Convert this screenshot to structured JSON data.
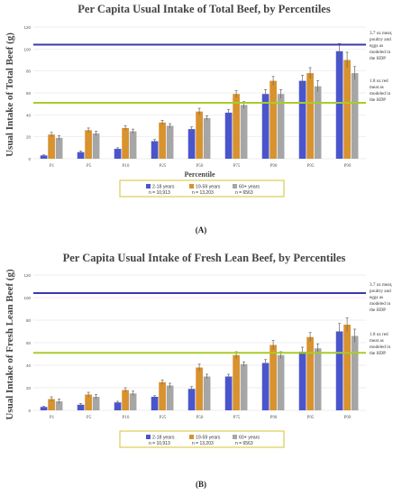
{
  "colors": {
    "series": [
      "#4a55cc",
      "#d8922e",
      "#a6a6a6"
    ],
    "line_top": "#3a3ab0",
    "line_mid": "#a8cc2a",
    "grid": "#e6e6e6"
  },
  "chart_data": [
    {
      "type": "bar",
      "panel_label": "(A)",
      "title": "Per Capita Usual Intake of Total Beef, by Percentiles",
      "xlabel": "Percentile",
      "ylabel": "Usual Intake of Total Beef (g)",
      "ylim": [
        0,
        120
      ],
      "yticks": [
        0,
        20,
        40,
        60,
        80,
        100,
        120
      ],
      "grid": true,
      "categories": [
        "P1",
        "P5",
        "P10",
        "P25",
        "P50",
        "P75",
        "P90",
        "P95",
        "P99"
      ],
      "series": [
        {
          "name": "2-18 years",
          "n": "n = 10,913",
          "values": [
            3,
            6,
            9,
            16,
            27,
            42,
            59,
            71,
            98
          ],
          "err": [
            0.5,
            1,
            1,
            1.5,
            2,
            3,
            4,
            5,
            7
          ]
        },
        {
          "name": "19-59 years",
          "n": "n = 13,203",
          "values": [
            22,
            26,
            28,
            33,
            43,
            59,
            71,
            78,
            90
          ],
          "err": [
            2,
            2,
            2,
            2,
            3,
            3,
            4,
            5,
            7
          ]
        },
        {
          "name": "60+ years",
          "n": "n = 6563",
          "values": [
            19,
            23,
            25,
            30,
            37,
            49,
            59,
            66,
            78
          ],
          "err": [
            2,
            2,
            2,
            2,
            2,
            3,
            4,
            5,
            6
          ]
        }
      ],
      "reference_lines": [
        {
          "value": 104,
          "color": "#3a3ab0",
          "label": "3.7 oz meat, poultry and eggs as modeled in the HDP"
        },
        {
          "value": 51,
          "color": "#a8cc2a",
          "label": "1.8 oz red meat as modeled in the HDP"
        }
      ],
      "legend": "bottom"
    },
    {
      "type": "bar",
      "panel_label": "(B)",
      "title": "Per Capita Usual Intake of Fresh Lean Beef, by Percentiles",
      "xlabel": "",
      "ylabel": "Usual Intake of Fresh Lean Beef (g)",
      "ylim": [
        0,
        120
      ],
      "yticks": [
        0,
        20,
        40,
        60,
        80,
        100,
        120
      ],
      "grid": true,
      "categories": [
        "P1",
        "P5",
        "P10",
        "P25",
        "P50",
        "P75",
        "P90",
        "P95",
        "P99"
      ],
      "series": [
        {
          "name": "2-18 years",
          "n": "n = 10,913",
          "values": [
            3,
            5,
            7,
            12,
            19,
            30,
            42,
            52,
            70
          ],
          "err": [
            0.5,
            1,
            1,
            1,
            2,
            2,
            3,
            4,
            7
          ]
        },
        {
          "name": "19-59 years",
          "n": "n = 13,203",
          "values": [
            10,
            14,
            18,
            25,
            38,
            49,
            58,
            65,
            76
          ],
          "err": [
            2,
            2,
            2,
            2,
            3,
            3,
            4,
            4,
            6
          ]
        },
        {
          "name": "60+ years",
          "n": "n = 6563",
          "values": [
            8,
            12,
            15,
            22,
            30,
            41,
            49,
            55,
            66
          ],
          "err": [
            2,
            2,
            2,
            2,
            2,
            2,
            3,
            4,
            6
          ]
        }
      ],
      "reference_lines": [
        {
          "value": 104,
          "color": "#3a3ab0",
          "label": "3.7 oz meat, poultry and eggs as modeled in the HDP"
        },
        {
          "value": 51,
          "color": "#a8cc2a",
          "label": "1.8 oz red meat as modeled in the HDP"
        }
      ],
      "legend": "bottom"
    }
  ]
}
